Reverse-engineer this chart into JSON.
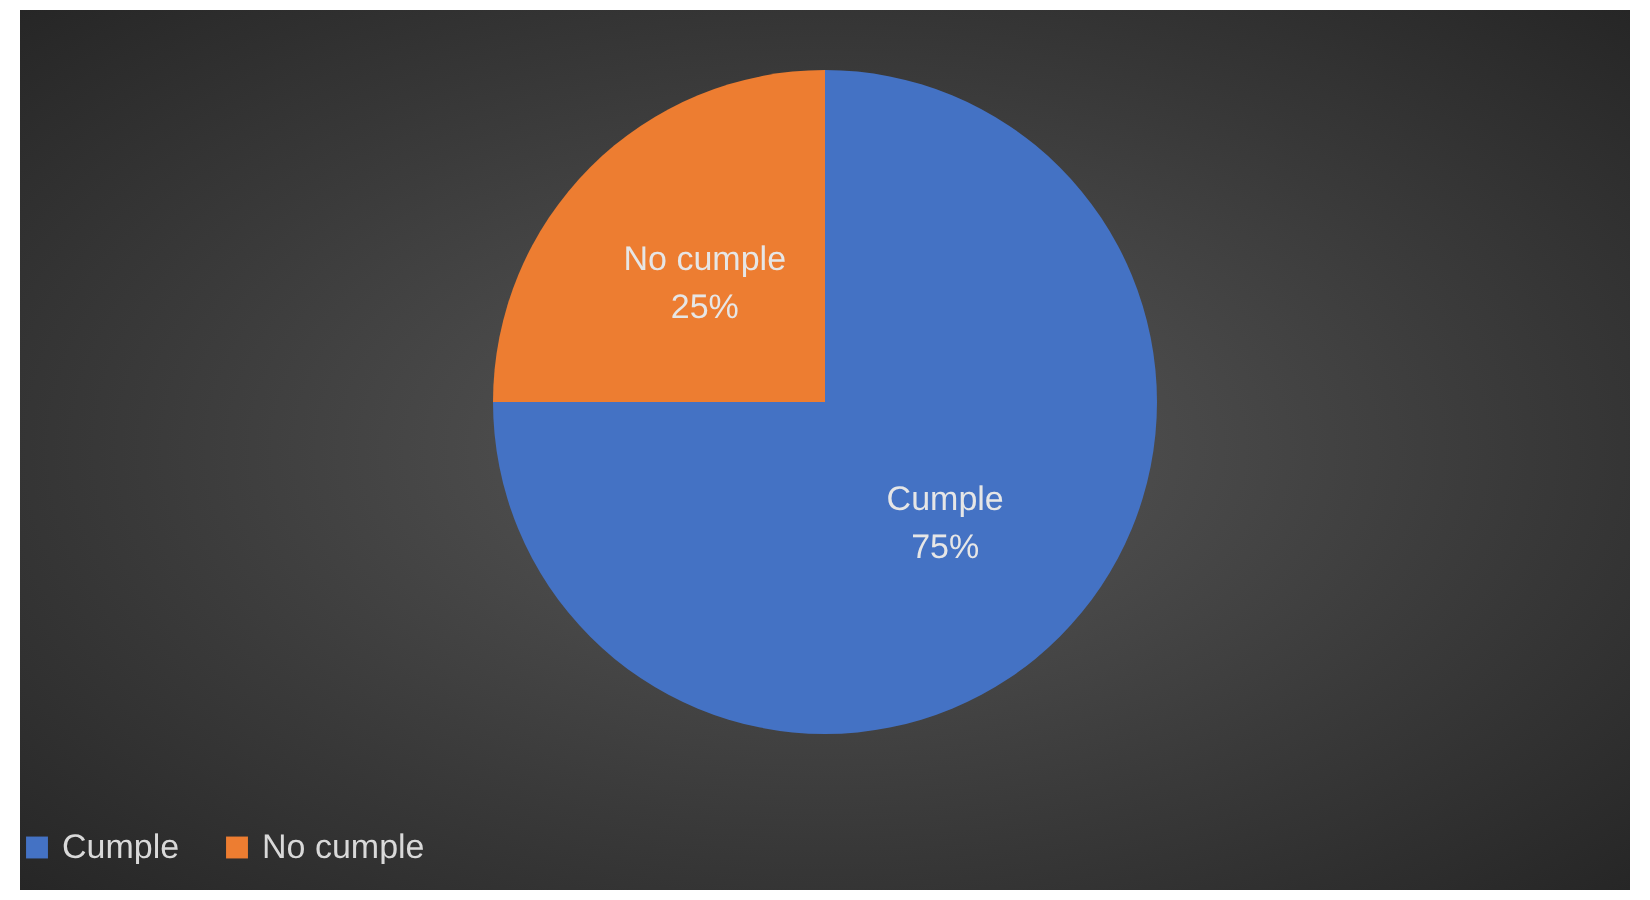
{
  "chart_data": {
    "type": "pie",
    "categories": [
      "Cumple",
      "No cumple"
    ],
    "values": [
      75,
      25
    ],
    "colors": [
      "#4472c4",
      "#ed7d31"
    ],
    "value_labels": [
      "75%",
      "25%"
    ],
    "legend": "bottom"
  }
}
